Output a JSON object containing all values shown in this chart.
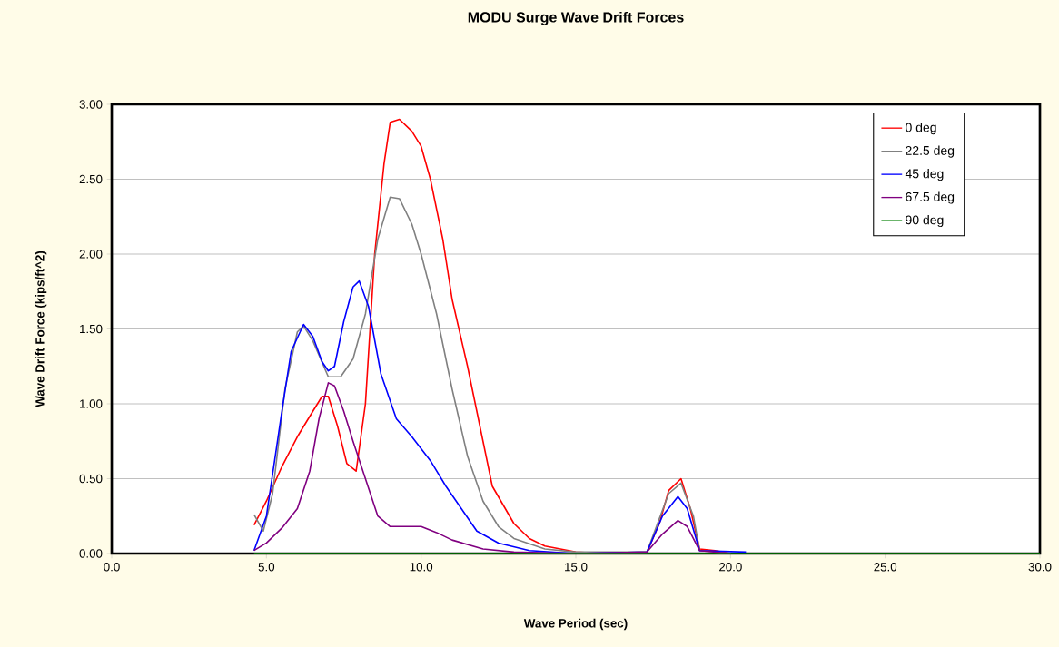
{
  "chart_data": {
    "type": "line",
    "title": "MODU Surge Wave Drift Forces",
    "xlabel": "Wave Period (sec)",
    "ylabel": "Wave Drift Force (kips/ft^2)",
    "xlim": [
      0,
      30
    ],
    "ylim": [
      0,
      3
    ],
    "xticks": [
      {
        "value": 0,
        "label": "0.0"
      },
      {
        "value": 5,
        "label": "5.0"
      },
      {
        "value": 10,
        "label": "10.0"
      },
      {
        "value": 15,
        "label": "15.0"
      },
      {
        "value": 20,
        "label": "20.0"
      },
      {
        "value": 25,
        "label": "25.0"
      },
      {
        "value": 30,
        "label": "30.0"
      }
    ],
    "yticks": [
      {
        "value": 0,
        "label": "0.00"
      },
      {
        "value": 0.5,
        "label": "0.50"
      },
      {
        "value": 1,
        "label": "1.00"
      },
      {
        "value": 1.5,
        "label": "1.50"
      },
      {
        "value": 2,
        "label": "2.00"
      },
      {
        "value": 2.5,
        "label": "2.50"
      },
      {
        "value": 3,
        "label": "3.00"
      }
    ],
    "grid": "y",
    "legend": "top right",
    "marker": "none",
    "line_style": "solid",
    "series": [
      {
        "name": "0 deg",
        "color": "#ff0000",
        "x": [
          4.6,
          5.0,
          5.5,
          6.0,
          6.5,
          6.8,
          7.0,
          7.3,
          7.6,
          7.9,
          8.2,
          8.5,
          8.8,
          9.0,
          9.3,
          9.7,
          10.0,
          10.3,
          10.7,
          11.0,
          11.5,
          12.0,
          12.3,
          13.0,
          13.5,
          14.0,
          15.0,
          16.0,
          17.3,
          17.7,
          18.0,
          18.4,
          18.7,
          19.0,
          19.5,
          20.0
        ],
        "values": [
          0.19,
          0.35,
          0.58,
          0.78,
          0.95,
          1.05,
          1.05,
          0.85,
          0.6,
          0.55,
          1.0,
          2.0,
          2.6,
          2.88,
          2.9,
          2.82,
          2.72,
          2.5,
          2.1,
          1.7,
          1.25,
          0.75,
          0.45,
          0.2,
          0.1,
          0.05,
          0.01,
          0.0,
          0.01,
          0.2,
          0.42,
          0.5,
          0.3,
          0.03,
          0.02,
          0.0
        ]
      },
      {
        "name": "22.5 deg",
        "color": "#808080",
        "x": [
          4.6,
          4.9,
          5.2,
          5.6,
          6.0,
          6.2,
          6.5,
          7.0,
          7.4,
          7.8,
          8.2,
          8.6,
          9.0,
          9.3,
          9.7,
          10.0,
          10.5,
          11.0,
          11.5,
          12.0,
          12.5,
          13.0,
          14.0,
          15.0,
          17.3,
          18.0,
          18.4,
          18.8,
          19.0,
          20.0
        ],
        "values": [
          0.26,
          0.15,
          0.4,
          1.1,
          1.48,
          1.52,
          1.42,
          1.18,
          1.18,
          1.3,
          1.6,
          2.1,
          2.38,
          2.37,
          2.2,
          2.0,
          1.6,
          1.1,
          0.65,
          0.35,
          0.18,
          0.1,
          0.03,
          0.01,
          0.01,
          0.4,
          0.47,
          0.25,
          0.02,
          0.0
        ]
      },
      {
        "name": "45 deg",
        "color": "#0000ff",
        "x": [
          4.6,
          5.0,
          5.5,
          5.8,
          6.2,
          6.5,
          6.8,
          7.0,
          7.2,
          7.5,
          7.8,
          8.0,
          8.3,
          8.7,
          9.2,
          9.7,
          10.3,
          10.8,
          11.3,
          11.8,
          12.5,
          13.5,
          15.0,
          17.3,
          17.8,
          18.3,
          18.6,
          19.0,
          20.5
        ],
        "values": [
          0.02,
          0.25,
          0.95,
          1.35,
          1.53,
          1.45,
          1.28,
          1.22,
          1.25,
          1.55,
          1.78,
          1.82,
          1.65,
          1.2,
          0.9,
          0.78,
          0.62,
          0.45,
          0.3,
          0.15,
          0.07,
          0.02,
          0.0,
          0.01,
          0.25,
          0.38,
          0.3,
          0.02,
          0.01
        ]
      },
      {
        "name": "67.5 deg",
        "color": "#800080",
        "x": [
          4.6,
          5.0,
          5.5,
          6.0,
          6.4,
          6.7,
          7.0,
          7.2,
          7.5,
          7.8,
          8.2,
          8.6,
          9.0,
          9.5,
          10.0,
          10.5,
          11.0,
          12.0,
          13.0,
          15.0,
          17.3,
          17.8,
          18.3,
          18.6,
          19.0,
          20.0
        ],
        "values": [
          0.02,
          0.07,
          0.17,
          0.3,
          0.55,
          0.9,
          1.14,
          1.12,
          0.95,
          0.75,
          0.5,
          0.25,
          0.18,
          0.18,
          0.18,
          0.14,
          0.09,
          0.03,
          0.01,
          0.0,
          0.01,
          0.13,
          0.22,
          0.18,
          0.02,
          0.0
        ]
      },
      {
        "name": "90 deg",
        "color": "#008000",
        "x": [
          4.6,
          30.0
        ],
        "values": [
          0.0,
          0.0
        ]
      }
    ]
  }
}
